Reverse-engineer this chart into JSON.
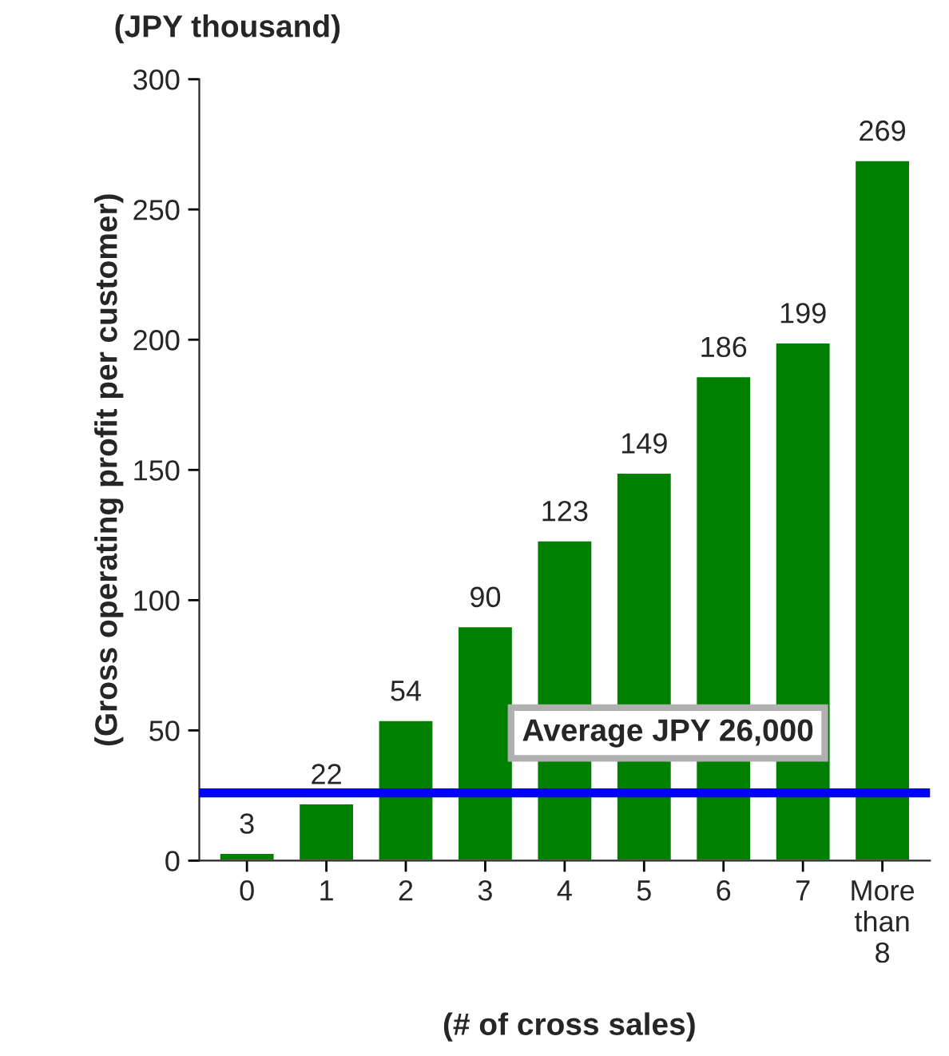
{
  "chart_data": {
    "type": "bar",
    "title": "(JPY thousand)",
    "xlabel": "(# of cross sales)",
    "ylabel": "(Gross operating profit per customer)",
    "categories": [
      "0",
      "1",
      "2",
      "3",
      "4",
      "5",
      "6",
      "7",
      "More than 8"
    ],
    "values": [
      3,
      22,
      54,
      90,
      123,
      149,
      186,
      199,
      269
    ],
    "color": "#008000",
    "ylim": [
      0,
      300
    ],
    "yticks": [
      0,
      50,
      100,
      150,
      200,
      250,
      300
    ],
    "data_labels": true,
    "grid": false,
    "legend": false,
    "ref_lines": [
      {
        "axis": "y",
        "value": 26,
        "label": "Average JPY 26,000",
        "color": "#0000ff"
      }
    ]
  }
}
